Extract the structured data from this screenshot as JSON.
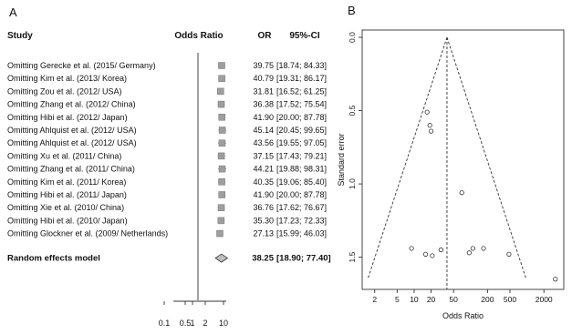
{
  "chart_data": [
    {
      "type": "forest",
      "panel_label": "A",
      "headers": {
        "study": "Study",
        "odds_ratio": "Odds Ratio",
        "or": "OR",
        "ci": "95%-CI"
      },
      "studies": [
        {
          "label": "Omitting Gerecke et al. (2015/ Germany)",
          "or": 39.75,
          "lo": 18.74,
          "hi": 84.33,
          "or_text": "39.75",
          "ci_text": "[18.74; 84.33]"
        },
        {
          "label": "Omitting Kim et al. (2013/ Korea)",
          "or": 40.79,
          "lo": 19.31,
          "hi": 86.17,
          "or_text": "40.79",
          "ci_text": "[19.31; 86.17]"
        },
        {
          "label": "Omitting Zou et al. (2012/ USA)",
          "or": 31.81,
          "lo": 16.52,
          "hi": 61.25,
          "or_text": "31.81",
          "ci_text": "[16.52; 61.25]"
        },
        {
          "label": "Omitting Zhang et al. (2012/ China)",
          "or": 36.38,
          "lo": 17.52,
          "hi": 75.54,
          "or_text": "36.38",
          "ci_text": "[17.52; 75.54]"
        },
        {
          "label": "Omitting Hibi et al. (2012/ Japan)",
          "or": 41.9,
          "lo": 20.0,
          "hi": 87.78,
          "or_text": "41.90",
          "ci_text": "[20.00; 87.78]"
        },
        {
          "label": "Omitting Ahlquist et al. (2012/ USA)",
          "or": 45.14,
          "lo": 20.45,
          "hi": 99.65,
          "or_text": "45.14",
          "ci_text": "[20.45; 99.65]"
        },
        {
          "label": "Omitting Ahlquist et al. (2012/ USA)",
          "or": 43.56,
          "lo": 19.55,
          "hi": 97.05,
          "or_text": "43.56",
          "ci_text": "[19.55; 97.05]"
        },
        {
          "label": "Omitting Xu et al. (2011/ China)",
          "or": 37.15,
          "lo": 17.43,
          "hi": 79.21,
          "or_text": "37.15",
          "ci_text": "[17.43; 79.21]"
        },
        {
          "label": "Omitting Zhang et al. (2011/ China)",
          "or": 44.21,
          "lo": 19.88,
          "hi": 98.31,
          "or_text": "44.21",
          "ci_text": "[19.88; 98.31]"
        },
        {
          "label": "Omitting Kim et al. (2011/ Korea)",
          "or": 40.35,
          "lo": 19.06,
          "hi": 85.4,
          "or_text": "40.35",
          "ci_text": "[19.06; 85.40]"
        },
        {
          "label": "Omitting Hibi et al. (2011/ Japan)",
          "or": 41.9,
          "lo": 20.0,
          "hi": 87.78,
          "or_text": "41.90",
          "ci_text": "[20.00; 87.78]"
        },
        {
          "label": "Omitting Xie et al. (2010/ China)",
          "or": 36.76,
          "lo": 17.62,
          "hi": 76.67,
          "or_text": "36.76",
          "ci_text": "[17.62; 76.67]"
        },
        {
          "label": "Omitting Hibi et al. (2010/ Japan)",
          "or": 35.3,
          "lo": 17.23,
          "hi": 72.33,
          "or_text": "35.30",
          "ci_text": "[17.23; 72.33]"
        },
        {
          "label": "Omitting Glockner et al. (2009/ Netherlands)",
          "or": 27.13,
          "lo": 15.99,
          "hi": 46.03,
          "or_text": "27.13",
          "ci_text": "[15.99; 46.03]"
        }
      ],
      "summary": {
        "label": "Random effects model",
        "or": 38.25,
        "lo": 18.9,
        "hi": 77.4,
        "or_text": "38.25",
        "ci_text": "[18.90; 77.40]"
      },
      "x_axis": {
        "scale": "log",
        "ticks": [
          0.1,
          0.5,
          1,
          2,
          10
        ],
        "tick_labels": [
          "0.1",
          "0.5",
          "1",
          "2",
          "10"
        ],
        "range": [
          0.1,
          10
        ]
      },
      "reference_line": 1
    },
    {
      "type": "scatter",
      "panel_label": "B",
      "xlabel": "Odds Ratio",
      "ylabel": "Standard error",
      "x_scale": "log",
      "xlim": [
        1.2,
        4500
      ],
      "ylim": [
        1.72,
        -0.05
      ],
      "y_reversed": true,
      "x_ticks": [
        2,
        5,
        10,
        20,
        50,
        200,
        500,
        2000
      ],
      "x_tick_labels": [
        "2",
        "5",
        "10",
        "20",
        "50",
        "200",
        "500",
        "2000"
      ],
      "y_ticks": [
        0.0,
        0.5,
        1.0,
        1.5
      ],
      "y_tick_labels": [
        "0.0",
        "0.5",
        "1.0",
        "1.5"
      ],
      "funnel": {
        "center": 38.25,
        "max_se": 1.65
      },
      "points": [
        {
          "x": 17,
          "y": 0.51
        },
        {
          "x": 19,
          "y": 0.6
        },
        {
          "x": 20,
          "y": 0.64
        },
        {
          "x": 9,
          "y": 1.44
        },
        {
          "x": 16,
          "y": 1.48
        },
        {
          "x": 21,
          "y": 1.49
        },
        {
          "x": 30,
          "y": 1.45
        },
        {
          "x": 70,
          "y": 1.06
        },
        {
          "x": 95,
          "y": 1.47
        },
        {
          "x": 110,
          "y": 1.44
        },
        {
          "x": 170,
          "y": 1.44
        },
        {
          "x": 480,
          "y": 1.48
        },
        {
          "x": 3200,
          "y": 1.65
        }
      ],
      "grid": false
    }
  ]
}
